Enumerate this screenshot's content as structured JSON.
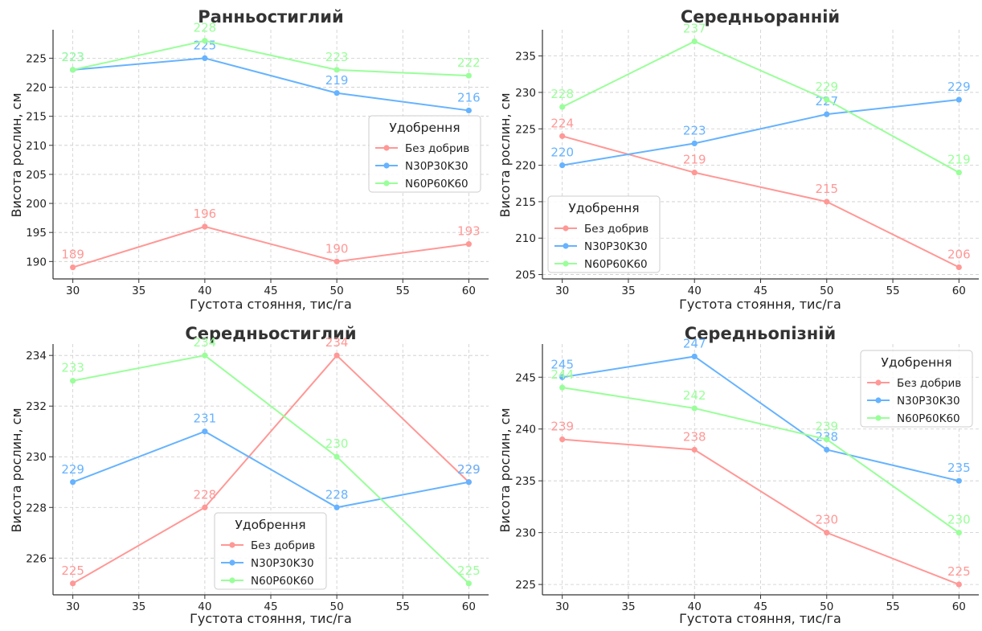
{
  "palette": {
    "series_colors": [
      "#ff9896",
      "#66b3ff",
      "#99ff99"
    ]
  },
  "chart_data": [
    {
      "type": "line",
      "title": "Ранньостиглий",
      "xlabel": "Густота стояння, тис/га",
      "ylabel": "Висота рослин, см",
      "x": [
        30,
        40,
        50,
        60
      ],
      "xticks": [
        30,
        35,
        40,
        45,
        50,
        55,
        60
      ],
      "xlim": [
        28.5,
        61.5
      ],
      "yticks": [
        190,
        195,
        200,
        205,
        210,
        215,
        220,
        225
      ],
      "ylim": [
        187.0,
        229.9
      ],
      "grid": true,
      "legend": {
        "title": "Удобрення",
        "placement": "center-right"
      },
      "series": [
        {
          "name": "Без добрив",
          "values": [
            189,
            196,
            190,
            193
          ]
        },
        {
          "name": "N30P30K30",
          "values": [
            223,
            225,
            219,
            216
          ]
        },
        {
          "name": "N60P60K60",
          "values": [
            223,
            228,
            223,
            222
          ]
        }
      ]
    },
    {
      "type": "line",
      "title": "Середньоранній",
      "xlabel": "Густота стояння, тис/га",
      "ylabel": "Висота рослин, см",
      "x": [
        30,
        40,
        50,
        60
      ],
      "xticks": [
        30,
        35,
        40,
        45,
        50,
        55,
        60
      ],
      "xlim": [
        28.5,
        61.5
      ],
      "yticks": [
        205,
        210,
        215,
        220,
        225,
        230,
        235
      ],
      "ylim": [
        204.4,
        238.6
      ],
      "grid": true,
      "legend": {
        "title": "Удобрення",
        "placement": "lower-left"
      },
      "series": [
        {
          "name": "Без добрив",
          "values": [
            224,
            219,
            215,
            206
          ]
        },
        {
          "name": "N30P30K30",
          "values": [
            220,
            223,
            227,
            229
          ]
        },
        {
          "name": "N60P60K60",
          "values": [
            228,
            237,
            229,
            219
          ]
        }
      ]
    },
    {
      "type": "line",
      "title": "Середньостиглий",
      "xlabel": "Густота стояння, тис/га",
      "ylabel": "Висота рослин, см",
      "x": [
        30,
        40,
        50,
        60
      ],
      "xticks": [
        30,
        35,
        40,
        45,
        50,
        55,
        60
      ],
      "xlim": [
        28.5,
        61.5
      ],
      "yticks": [
        226,
        228,
        230,
        232,
        234
      ],
      "ylim": [
        224.55,
        234.45
      ],
      "grid": true,
      "legend": {
        "title": "Удобрення",
        "placement": "lower-center"
      },
      "series": [
        {
          "name": "Без добрив",
          "values": [
            225,
            228,
            234,
            229
          ]
        },
        {
          "name": "N30P30K30",
          "values": [
            229,
            231,
            228,
            229
          ]
        },
        {
          "name": "N60P60K60",
          "values": [
            233,
            234,
            230,
            225
          ]
        }
      ]
    },
    {
      "type": "line",
      "title": "Середньопізній",
      "xlabel": "Густота стояння, тис/га",
      "ylabel": "Висота рослин, см",
      "x": [
        30,
        40,
        50,
        60
      ],
      "xticks": [
        30,
        35,
        40,
        45,
        50,
        55,
        60
      ],
      "xlim": [
        28.5,
        61.5
      ],
      "yticks": [
        225,
        230,
        235,
        240,
        245
      ],
      "ylim": [
        224.0,
        248.2
      ],
      "grid": true,
      "legend": {
        "title": "Удобрення",
        "placement": "upper-right"
      },
      "series": [
        {
          "name": "Без добрив",
          "values": [
            239,
            238,
            230,
            225
          ]
        },
        {
          "name": "N30P30K30",
          "values": [
            245,
            247,
            238,
            235
          ]
        },
        {
          "name": "N60P60K60",
          "values": [
            244,
            242,
            239,
            230
          ]
        }
      ]
    }
  ]
}
